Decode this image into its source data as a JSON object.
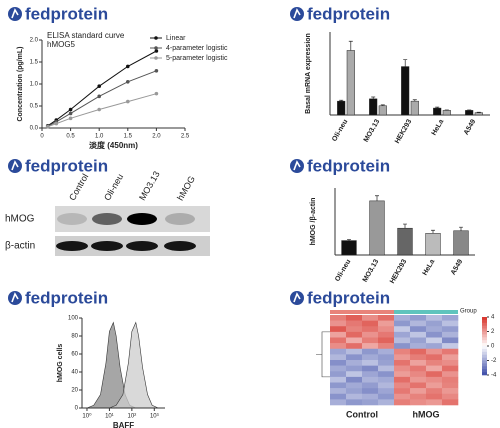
{
  "logo": "fedprotein",
  "blot": {
    "lanes": [
      "Control",
      "Oli-neu",
      "MO3.13",
      "hMOG"
    ],
    "rows": [
      "hMOG",
      "β-actin"
    ]
  },
  "chart_data": [
    {
      "type": "line",
      "title": "ELISA standard curve",
      "subtitle": "hMOG5",
      "x_label": "淡度 (450nm)",
      "y_label": "Concentration (pg/mL)",
      "x": [
        0.1,
        0.25,
        0.5,
        1,
        1.5,
        2
      ],
      "series": [
        {
          "name": "Linear",
          "color": "#111111",
          "values": [
            0.05,
            0.18,
            0.42,
            0.95,
            1.4,
            1.75
          ]
        },
        {
          "name": "4-parameter logistic",
          "color": "#555555",
          "values": [
            0.04,
            0.14,
            0.33,
            0.72,
            1.05,
            1.3
          ]
        },
        {
          "name": "5-parameter logistic",
          "color": "#999999",
          "values": [
            0.03,
            0.1,
            0.22,
            0.42,
            0.6,
            0.78
          ]
        }
      ],
      "xlim": [
        0,
        2.5
      ],
      "xticks": [
        0,
        0.5,
        {
          "value": 1,
          "label": "1.0"
        },
        1.5,
        {
          "value": 2,
          "label": "2.0"
        },
        2.5
      ],
      "ylim": [
        0,
        2
      ],
      "yticks": [
        {
          "value": 0,
          "label": "0.0"
        },
        0.5,
        {
          "value": 1,
          "label": "1.0"
        },
        1.5,
        {
          "value": 2,
          "label": "2.0"
        }
      ]
    },
    {
      "type": "bar",
      "y_label": "Basal mRNA expression",
      "categories": [
        "Oli-neu",
        "MO3.13",
        "HEK293",
        "HeLa",
        "A549"
      ],
      "series": [
        {
          "color": "#111111",
          "values": [
            0.3,
            0.35,
            1.05,
            0.15,
            0.1
          ],
          "errors": [
            0.02,
            0.04,
            0.15,
            0.02,
            0.01
          ]
        },
        {
          "color": "#aaaaaa",
          "values": [
            1.4,
            0.2,
            0.3,
            0.1,
            0.05
          ],
          "errors": [
            0.2,
            0.02,
            0.03,
            0.01,
            0.01
          ]
        }
      ],
      "ylim": [
        0,
        1.8
      ]
    },
    {
      "type": "bar",
      "y_label": "hMOG /β-actin",
      "categories": [
        "Oli-neu",
        "MO3.13",
        "HEK293",
        "HeLa",
        "A549"
      ],
      "values": [
        0.28,
        1.05,
        0.52,
        0.42,
        0.47
      ],
      "errors": [
        0.02,
        0.1,
        0.08,
        0.06,
        0.07
      ],
      "colors": [
        "#111111",
        "#999999",
        "#666666",
        "#bbbbbb",
        "#888888"
      ],
      "ylim": [
        0,
        1.3
      ]
    },
    {
      "type": "area",
      "x_label": "BAFF",
      "y_label": "hMOG cells",
      "xscale": "log",
      "series": [
        {
          "color": "#888888",
          "x": [
            1,
            2,
            4,
            7,
            10,
            15,
            20,
            30,
            50,
            80,
            150
          ],
          "values": [
            0,
            3,
            15,
            50,
            85,
            95,
            80,
            45,
            15,
            3,
            0
          ]
        },
        {
          "color": "#cccccc",
          "x": [
            10,
            20,
            40,
            70,
            100,
            150,
            200,
            300,
            500,
            800,
            1500
          ],
          "values": [
            0,
            3,
            15,
            50,
            85,
            95,
            80,
            45,
            15,
            3,
            0
          ]
        }
      ],
      "xlim": [
        0.6,
        3000
      ],
      "xticks": [
        {
          "value": 1,
          "label": "10⁰"
        },
        {
          "value": 10,
          "label": "10¹"
        },
        {
          "value": 100,
          "label": "10²"
        },
        {
          "value": 1000,
          "label": "10³"
        }
      ],
      "ylim": [
        0,
        100
      ],
      "yticks": [
        0,
        20,
        40,
        60,
        80,
        100
      ]
    },
    {
      "type": "heatmap",
      "legend_title": "Group",
      "groups": [
        {
          "name": "Control",
          "color": "#e8837a"
        },
        {
          "name": "hMOG",
          "color": "#5fc4bd"
        }
      ],
      "zlim": [
        -4,
        4
      ],
      "zticks": [
        4,
        2,
        0,
        -2,
        -4
      ],
      "values": [
        [
          2.5,
          3.1,
          2.2,
          2.8,
          -1.8,
          -2.2,
          -1.5,
          -2.0
        ],
        [
          2.1,
          2.6,
          3.0,
          1.9,
          -2.3,
          -1.6,
          -2.1,
          -1.4
        ],
        [
          3.2,
          2.4,
          2.7,
          2.2,
          -1.2,
          -2.5,
          -1.9,
          -2.2
        ],
        [
          1.8,
          2.9,
          2.1,
          2.6,
          -2.0,
          -1.3,
          -2.4,
          -1.7
        ],
        [
          2.7,
          1.6,
          2.5,
          3.0,
          -1.5,
          -2.1,
          -1.1,
          -2.6
        ],
        [
          2.2,
          2.8,
          1.7,
          2.4,
          -2.4,
          -1.8,
          -2.0,
          -1.2
        ],
        [
          -2.0,
          -1.5,
          -2.3,
          -1.8,
          2.4,
          2.9,
          2.1,
          2.6
        ],
        [
          -1.6,
          -2.4,
          -1.9,
          -2.2,
          2.0,
          2.5,
          2.8,
          1.9
        ],
        [
          -2.5,
          -1.8,
          -1.4,
          -2.1,
          2.7,
          1.8,
          2.4,
          2.2
        ],
        [
          -1.9,
          -2.2,
          -2.6,
          -1.5,
          2.2,
          2.6,
          1.7,
          2.8
        ],
        [
          -2.2,
          -1.3,
          -2.0,
          -2.4,
          1.9,
          2.3,
          2.9,
          2.1
        ],
        [
          -1.4,
          -2.6,
          -1.7,
          -1.9,
          2.8,
          2.0,
          2.2,
          2.5
        ],
        [
          -2.3,
          -1.9,
          -2.2,
          -1.6,
          2.3,
          2.7,
          1.9,
          2.4
        ],
        [
          -1.7,
          -2.1,
          -2.5,
          -2.0,
          2.6,
          1.9,
          2.5,
          2.0
        ],
        [
          -2.4,
          -1.6,
          -1.8,
          -2.3,
          2.1,
          2.4,
          2.7,
          2.3
        ],
        [
          -1.8,
          -2.3,
          -2.1,
          -1.7,
          2.5,
          2.2,
          2.0,
          2.7
        ]
      ]
    }
  ]
}
